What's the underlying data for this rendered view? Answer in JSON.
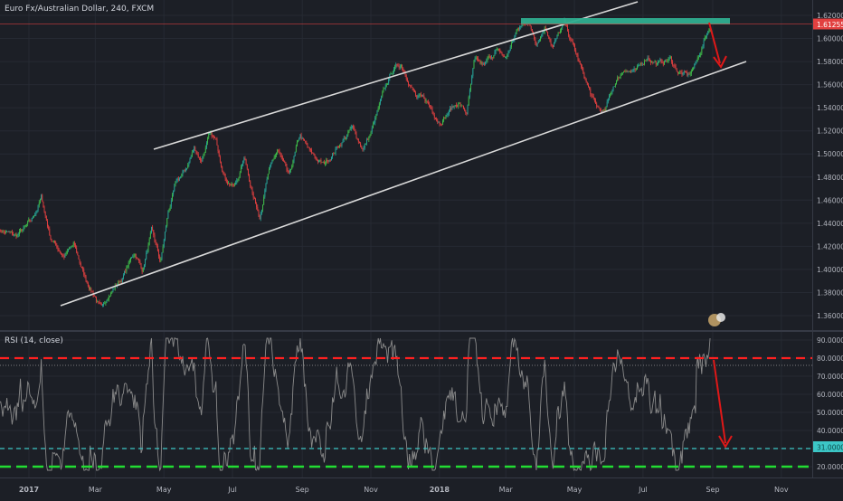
{
  "main_title": "Euro Fx/Australian Dollar, 240, FXCM",
  "rsi_title": "RSI (14, close)",
  "colors": {
    "background": "#1c1f26",
    "up": "#26a69a",
    "up_bright": "#3fbf4a",
    "down": "#e24040",
    "grid": "#262a33",
    "text": "#b2b5be",
    "channel": "#d9d9d9",
    "resistance_band": "#2fae8f",
    "red_arrow": "#e01818",
    "rsi_line": "#8a8a8a",
    "level_red": "#ff2020",
    "level_green": "#22dd33",
    "level_cyan": "#3cc6c6"
  },
  "chart_data": [
    {
      "type": "candlestick",
      "title": "Euro Fx/Australian Dollar, 240, FXCM",
      "x_tick_labels": [
        "2017",
        "Mar",
        "May",
        "Jul",
        "Sep",
        "Nov",
        "2018",
        "Mar",
        "May",
        "Jul",
        "Sep",
        "Nov"
      ],
      "x_tick_dates": [
        "2017-01-01",
        "2017-03-01",
        "2017-05-01",
        "2017-07-01",
        "2017-09-01",
        "2017-11-01",
        "2018-01-01",
        "2018-03-01",
        "2018-05-01",
        "2018-07-01",
        "2018-09-01",
        "2018-11-01"
      ],
      "y_tick_labels": [
        "1.36000",
        "1.38000",
        "1.40000",
        "1.42000",
        "1.44000",
        "1.46000",
        "1.48000",
        "1.50000",
        "1.52000",
        "1.54000",
        "1.56000",
        "1.58000",
        "1.60000",
        "1.62000"
      ],
      "ylim": [
        1.354,
        1.627
      ],
      "last_price": 1.61255,
      "last_price_label": "1.61255",
      "price_path": [
        [
          "2016-12-05",
          1.435
        ],
        [
          "2016-12-20",
          1.428
        ],
        [
          "2017-01-03",
          1.44
        ],
        [
          "2017-01-12",
          1.462
        ],
        [
          "2017-01-20",
          1.428
        ],
        [
          "2017-02-01",
          1.412
        ],
        [
          "2017-02-10",
          1.42
        ],
        [
          "2017-02-20",
          1.392
        ],
        [
          "2017-03-01",
          1.377
        ],
        [
          "2017-03-07",
          1.363
        ],
        [
          "2017-03-12",
          1.378
        ],
        [
          "2017-03-25",
          1.393
        ],
        [
          "2017-04-05",
          1.415
        ],
        [
          "2017-04-12",
          1.4
        ],
        [
          "2017-04-20",
          1.432
        ],
        [
          "2017-04-28",
          1.405
        ],
        [
          "2017-05-05",
          1.45
        ],
        [
          "2017-05-12",
          1.474
        ],
        [
          "2017-05-20",
          1.485
        ],
        [
          "2017-05-28",
          1.505
        ],
        [
          "2017-06-03",
          1.495
        ],
        [
          "2017-06-10",
          1.515
        ],
        [
          "2017-06-16",
          1.51
        ],
        [
          "2017-06-25",
          1.48
        ],
        [
          "2017-07-03",
          1.472
        ],
        [
          "2017-07-12",
          1.497
        ],
        [
          "2017-07-20",
          1.462
        ],
        [
          "2017-07-25",
          1.448
        ],
        [
          "2017-08-01",
          1.48
        ],
        [
          "2017-08-10",
          1.503
        ],
        [
          "2017-08-20",
          1.478
        ],
        [
          "2017-08-30",
          1.515
        ],
        [
          "2017-09-08",
          1.5
        ],
        [
          "2017-09-20",
          1.49
        ],
        [
          "2017-10-01",
          1.505
        ],
        [
          "2017-10-15",
          1.522
        ],
        [
          "2017-10-25",
          1.505
        ],
        [
          "2017-11-01",
          1.518
        ],
        [
          "2017-11-10",
          1.545
        ],
        [
          "2017-11-20",
          1.572
        ],
        [
          "2017-11-28",
          1.578
        ],
        [
          "2017-12-05",
          1.565
        ],
        [
          "2017-12-12",
          1.548
        ],
        [
          "2017-12-20",
          1.545
        ],
        [
          "2018-01-01",
          1.53
        ],
        [
          "2018-01-10",
          1.538
        ],
        [
          "2018-01-18",
          1.545
        ],
        [
          "2018-01-25",
          1.535
        ],
        [
          "2018-02-01",
          1.578
        ],
        [
          "2018-02-10",
          1.575
        ],
        [
          "2018-02-20",
          1.59
        ],
        [
          "2018-03-01",
          1.582
        ],
        [
          "2018-03-10",
          1.605
        ],
        [
          "2018-03-20",
          1.616
        ],
        [
          "2018-03-28",
          1.598
        ],
        [
          "2018-04-05",
          1.612
        ],
        [
          "2018-04-12",
          1.595
        ],
        [
          "2018-04-22",
          1.612
        ],
        [
          "2018-05-01",
          1.59
        ],
        [
          "2018-05-10",
          1.565
        ],
        [
          "2018-05-20",
          1.54
        ],
        [
          "2018-05-28",
          1.535
        ],
        [
          "2018-06-05",
          1.56
        ],
        [
          "2018-06-15",
          1.575
        ],
        [
          "2018-06-25",
          1.57
        ],
        [
          "2018-07-05",
          1.585
        ],
        [
          "2018-07-15",
          1.578
        ],
        [
          "2018-07-25",
          1.582
        ],
        [
          "2018-08-01",
          1.572
        ],
        [
          "2018-08-10",
          1.566
        ],
        [
          "2018-08-18",
          1.58
        ],
        [
          "2018-08-25",
          1.6
        ],
        [
          "2018-08-30",
          1.61255
        ]
      ],
      "rsi": {
        "label": "RSI (14, close)",
        "y_tick_labels": [
          "20.0000",
          "30.0000",
          "40.0000",
          "50.0000",
          "60.0000",
          "70.0000",
          "80.0000",
          "90.0000"
        ],
        "ylim": [
          15,
          92
        ],
        "levels": {
          "upper": 80,
          "upper_dotted": 76,
          "lower_cyan": 30,
          "lower": 20
        },
        "current_label": "31.0000",
        "current_value": 31
      }
    }
  ]
}
